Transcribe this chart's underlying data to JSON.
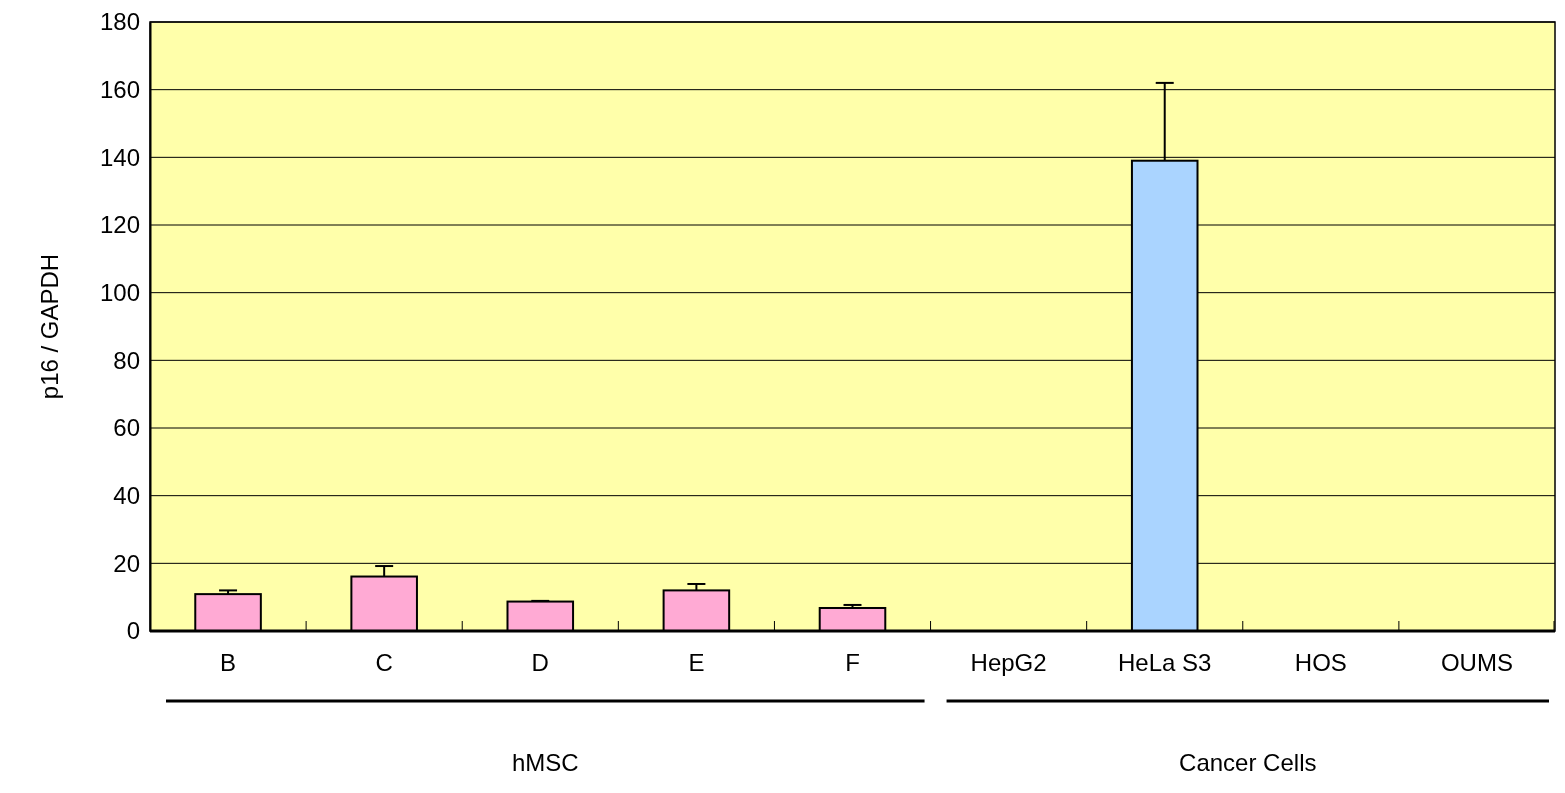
{
  "chart_data": {
    "type": "bar",
    "ylabel": "p16 /  GAPDH",
    "categories": [
      "B",
      "C",
      "D",
      "E",
      "F",
      "HepG2",
      "HeLa S3",
      "HOS",
      "OUMS"
    ],
    "values": [
      10.9,
      16.1,
      8.7,
      12.0,
      6.8,
      0,
      139,
      0,
      0
    ],
    "errors": [
      1.1,
      3.1,
      0.2,
      1.9,
      0.9,
      null,
      23,
      null,
      null
    ],
    "colors": [
      "#ffaad4",
      "#ffaad4",
      "#ffaad4",
      "#ffaad4",
      "#ffaad4",
      "#aad4ff",
      "#aad4ff",
      "#aad4ff",
      "#aad4ff"
    ],
    "ylim": [
      0,
      180
    ],
    "yticks": [
      0,
      20,
      40,
      60,
      80,
      100,
      120,
      140,
      160,
      180
    ],
    "grid": "y",
    "annotations": [
      "hMSC",
      "Cancer Cells"
    ]
  }
}
